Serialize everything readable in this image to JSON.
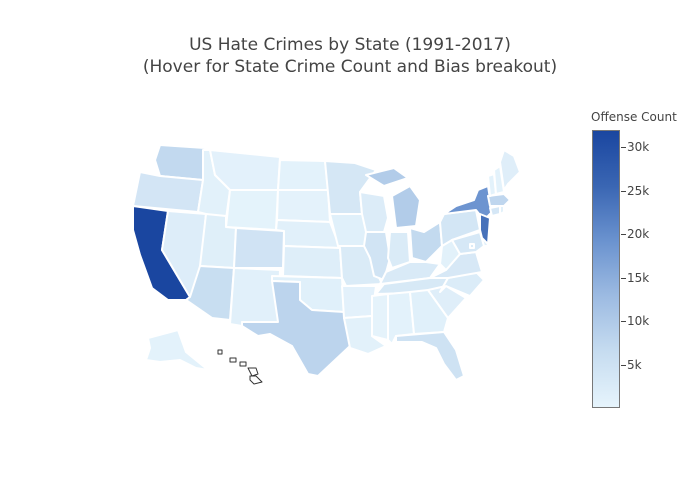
{
  "title": {
    "line1": "US Hate Crimes by State (1991-2017)",
    "line2": "(Hover for State Crime Count and Bias breakout)"
  },
  "colorbar": {
    "title": "Offense Count",
    "min": 0,
    "max": 32000,
    "colors": [
      "#e6f4fc",
      "#c6dcf0",
      "#9dbbe2",
      "#6b93cf",
      "#3a66b3",
      "#1a46a0"
    ],
    "ticks": [
      {
        "label": "30k",
        "value": 30000
      },
      {
        "label": "25k",
        "value": 25000
      },
      {
        "label": "20k",
        "value": 20000
      },
      {
        "label": "15k",
        "value": 15000
      },
      {
        "label": "10k",
        "value": 10000
      },
      {
        "label": "5k",
        "value": 5000
      }
    ]
  },
  "chart_data": {
    "type": "choropleth",
    "colorscale": "blues",
    "values": {
      "CA": 32000,
      "NY": 19000,
      "NJ": 24000,
      "MI": 9500,
      "WA": 7000,
      "TX": 8000,
      "AZ": 6000,
      "OH": 6800,
      "MA": 7500,
      "CO": 4500,
      "FL": 4800,
      "IL": 4200,
      "OR": 3900,
      "MN": 3500,
      "PA": 3800,
      "MD": 3200,
      "VA": 3100,
      "TN": 3000,
      "IN": 2500,
      "KY": 2600,
      "MO": 2500,
      "WI": 2100,
      "NC": 2200,
      "KS": 1600,
      "NV": 1800,
      "ID": 900,
      "UT": 1400,
      "NM": 1100,
      "MT": 700,
      "WY": 400,
      "ND": 600,
      "SD": 500,
      "NE": 1100,
      "IA": 1200,
      "OK": 1200,
      "AR": 700,
      "LA": 900,
      "MS": 300,
      "AL": 600,
      "GA": 1200,
      "SC": 1500,
      "WV": 900,
      "ME": 1500,
      "NH": 600,
      "VT": 600,
      "CT": 3400,
      "RI": 900,
      "DE": 1000,
      "AK": 600,
      "HI": 50,
      "DC": 2400
    }
  }
}
